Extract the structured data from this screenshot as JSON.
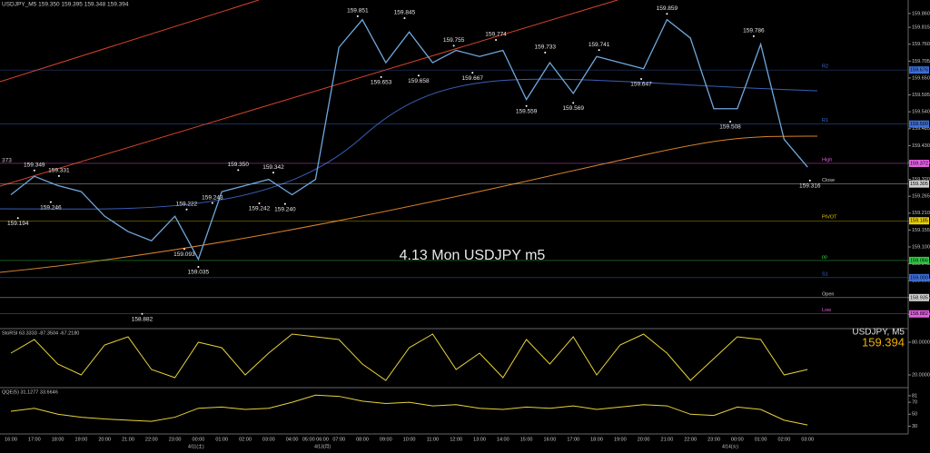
{
  "window_title": "USDJPY_M5 159.350 159.395 159.348 159.394",
  "chart_data": [
    {
      "type": "line",
      "title": "4.13 Mon USDJPY m5",
      "symbol": "USDJPY, M5",
      "last_price": "159.394",
      "edge_label": "373",
      "categories": [
        "16:00",
        "17:00",
        "18:00",
        "19:00",
        "20:00",
        "21:00",
        "22:00",
        "23:00",
        "00:00",
        "01:00",
        "02:00",
        "03:00",
        "04:00",
        "05:00 06:00",
        "07:00",
        "08:00",
        "09:00",
        "10:00",
        "11:00",
        "12:00",
        "13:00",
        "14:00",
        "15:00",
        "16:00",
        "17:00",
        "18:00",
        "19:00",
        "20:00",
        "21:00",
        "22:00",
        "23:00",
        "00:00",
        "01:00",
        "02:00",
        "03:00"
      ],
      "date_labels": [
        {
          "label": "4/11(土)",
          "x": 7.9
        },
        {
          "label": "4/13(月)",
          "x": 13.3
        },
        {
          "label": "4/14(火)",
          "x": 30.7
        }
      ],
      "series": [
        {
          "color": "#6fa8dc",
          "values": [
            159.27,
            159.33,
            159.3,
            159.28,
            159.2,
            159.15,
            159.12,
            159.2,
            159.06,
            159.28,
            159.3,
            159.32,
            159.27,
            159.32,
            159.75,
            159.84,
            159.7,
            159.8,
            159.7,
            159.74,
            159.72,
            159.74,
            159.58,
            159.7,
            159.6,
            159.72,
            159.7,
            159.68,
            159.84,
            159.78,
            159.55,
            159.55,
            159.76,
            159.45,
            159.36
          ]
        }
      ],
      "ylim": [
        158.834,
        159.904
      ],
      "yticks": [
        {
          "value": 159.86,
          "label": "159.860"
        },
        159.815,
        {
          "value": 159.76,
          "label": "159.760"
        },
        159.705,
        {
          "value": 159.65,
          "label": "159.650"
        },
        159.595,
        {
          "value": 159.54,
          "label": "159.540"
        },
        159.485,
        {
          "value": 159.43,
          "label": "159.430"
        },
        159.375,
        {
          "value": 159.32,
          "label": "159.320"
        },
        159.265,
        {
          "value": 159.21,
          "label": "159.210"
        },
        159.155,
        {
          "value": 159.1,
          "label": "159.100"
        },
        159.045,
        {
          "value": 158.99,
          "label": "158.990"
        },
        158.935,
        {
          "value": 158.88,
          "label": "158.880"
        }
      ],
      "annotations": [
        {
          "value": 159.349,
          "x": 1.0
        },
        {
          "value": 159.194,
          "x": 0.3
        },
        {
          "value": 159.331,
          "x": 2.05
        },
        {
          "value": 159.246,
          "x": 1.7
        },
        {
          "value": 159.222,
          "x": 7.5
        },
        {
          "value": 159.093,
          "x": 7.4
        },
        {
          "value": 159.035,
          "x": 8.0
        },
        {
          "value": 158.882,
          "x": 5.6
        },
        {
          "value": 159.243,
          "x": 8.6
        },
        {
          "value": 159.35,
          "label": "159.350",
          "x": 9.7
        },
        {
          "value": 159.242,
          "x": 10.6
        },
        {
          "value": 159.342,
          "x": 11.2
        },
        {
          "value": 159.24,
          "label": "159.240",
          "x": 11.7
        },
        {
          "value": 159.851,
          "x": 14.8
        },
        {
          "value": 159.653,
          "x": 15.8
        },
        {
          "value": 159.845,
          "x": 16.8
        },
        {
          "value": 159.658,
          "x": 17.4
        },
        {
          "value": 159.755,
          "x": 18.9
        },
        {
          "value": 159.667,
          "x": 19.7
        },
        {
          "value": 159.774,
          "x": 20.7
        },
        {
          "value": 159.559,
          "x": 22.0
        },
        {
          "value": 159.733,
          "x": 22.8
        },
        {
          "value": 159.569,
          "x": 24.0
        },
        {
          "value": 159.741,
          "x": 25.1
        },
        {
          "value": 159.647,
          "x": 26.9
        },
        {
          "value": 159.859,
          "x": 28.0
        },
        {
          "value": 159.508,
          "x": 30.7
        },
        {
          "value": 159.786,
          "x": 31.7
        },
        {
          "value": 159.316,
          "x": 34.1
        }
      ],
      "levels": [
        {
          "name": "R2",
          "value": 159.676,
          "color": "#3d6fd6"
        },
        {
          "name": "R1",
          "value": 159.5,
          "label": "159.500",
          "color": "#3d6fd6"
        },
        {
          "name": "High",
          "value": 159.372,
          "color": "#e060e0"
        },
        {
          "name": "Close",
          "value": 159.305,
          "color": "#d0d0d0"
        },
        {
          "name": "PIVOT",
          "value": 159.185,
          "color": "#e8d000"
        },
        {
          "name": "pp",
          "value": 159.056,
          "color": "#2ecc40"
        },
        {
          "name": "S1",
          "value": 159,
          "label": "159.000",
          "color": "#3d6fd6"
        },
        {
          "name": "Open",
          "value": 158.935,
          "color": "#d0d0d0"
        },
        {
          "name": "Low",
          "value": 158.882,
          "color": "#e060e0"
        }
      ]
    },
    {
      "type": "line",
      "title": "StoRSI 63.3333 -87.3504 -67.2180",
      "series": [
        {
          "color": "#e8d23a",
          "values": [
            60,
            85,
            40,
            20,
            75,
            90,
            30,
            15,
            80,
            70,
            20,
            60,
            95,
            90,
            85,
            40,
            10,
            70,
            95,
            30,
            60,
            15,
            85,
            40,
            90,
            20,
            75,
            95,
            60,
            10,
            50,
            90,
            85,
            20,
            30
          ]
        }
      ],
      "ylim": [
        0,
        100
      ],
      "yticks": [
        {
          "value": 80,
          "label": "80.0000"
        },
        {
          "value": 20,
          "label": "20.0000"
        }
      ]
    },
    {
      "type": "line",
      "title": "QQE(5) 31.1277 33.6646",
      "series": [
        {
          "color": "#e8d23a",
          "values": [
            55,
            60,
            50,
            45,
            42,
            40,
            38,
            45,
            60,
            62,
            58,
            60,
            70,
            82,
            80,
            72,
            68,
            70,
            64,
            66,
            60,
            58,
            62,
            60,
            64,
            58,
            62,
            66,
            64,
            50,
            48,
            62,
            58,
            40,
            32
          ]
        }
      ],
      "ylim": [
        20,
        90
      ],
      "yticks": [
        81,
        70,
        50,
        30
      ]
    }
  ]
}
